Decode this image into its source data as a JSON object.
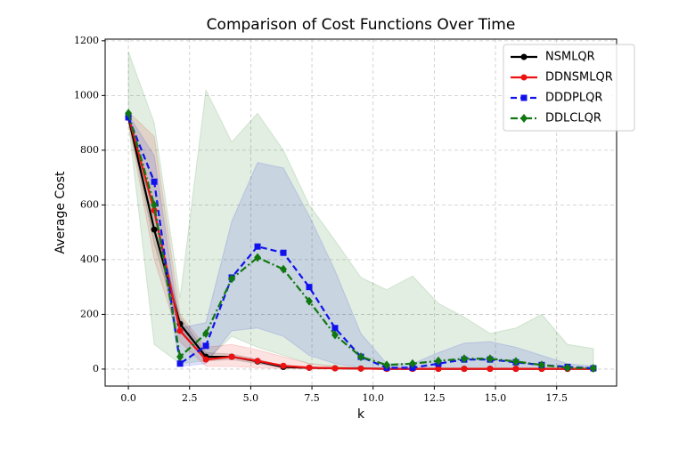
{
  "chart_data": {
    "type": "line",
    "title": "Comparison of Cost Functions Over Time",
    "x_label": "k",
    "y_label": "Average Cost",
    "x": [
      0,
      1.056,
      2.111,
      3.167,
      4.222,
      5.278,
      6.333,
      7.389,
      8.444,
      9.5,
      10.556,
      11.611,
      12.667,
      13.722,
      14.778,
      15.833,
      16.889,
      17.944,
      19
    ],
    "series": [
      {
        "name": "NSMLQR",
        "color": "#000000",
        "marker": "circle",
        "linestyle": "solid",
        "values": [
          920,
          510,
          165,
          45,
          45,
          28,
          8,
          5,
          3,
          2,
          1,
          1,
          1,
          1,
          1,
          1,
          1,
          1,
          1
        ],
        "upper": [
          930,
          560,
          190,
          60,
          55,
          35,
          12,
          8,
          5,
          3,
          2,
          2,
          2,
          2,
          2,
          2,
          2,
          2,
          2
        ],
        "lower": [
          910,
          460,
          140,
          30,
          35,
          20,
          4,
          2,
          1,
          0,
          0,
          0,
          0,
          0,
          0,
          0,
          0,
          0,
          0
        ]
      },
      {
        "name": "DDNSMLQR",
        "color": "#ee1111",
        "marker": "circle",
        "linestyle": "solid",
        "values": [
          925,
          580,
          140,
          35,
          45,
          30,
          12,
          5,
          3,
          2,
          1,
          1,
          1,
          1,
          1,
          1,
          1,
          1,
          1
        ],
        "upper": [
          940,
          850,
          200,
          80,
          90,
          70,
          45,
          20,
          10,
          5,
          3,
          3,
          3,
          3,
          3,
          3,
          3,
          3,
          3
        ],
        "lower": [
          900,
          400,
          100,
          10,
          10,
          5,
          2,
          1,
          0,
          0,
          0,
          0,
          0,
          0,
          0,
          0,
          0,
          0,
          0
        ]
      },
      {
        "name": "DDDPLQR",
        "color": "#1111ee",
        "marker": "square",
        "linestyle": "dashed",
        "values": [
          920,
          685,
          20,
          85,
          335,
          448,
          425,
          300,
          150,
          45,
          5,
          5,
          20,
          35,
          35,
          25,
          15,
          8,
          3
        ],
        "upper": [
          930,
          780,
          150,
          170,
          540,
          755,
          735,
          560,
          360,
          130,
          20,
          20,
          60,
          95,
          100,
          80,
          50,
          20,
          10
        ],
        "lower": [
          910,
          580,
          10,
          20,
          140,
          150,
          120,
          50,
          20,
          5,
          0,
          0,
          0,
          0,
          0,
          0,
          0,
          0,
          0
        ]
      },
      {
        "name": "DDLCLQR",
        "color": "#117711",
        "marker": "diamond",
        "linestyle": "dashdot",
        "values": [
          935,
          600,
          45,
          130,
          330,
          408,
          365,
          248,
          125,
          45,
          15,
          20,
          30,
          38,
          38,
          28,
          15,
          5,
          3
        ],
        "upper": [
          1160,
          900,
          260,
          1020,
          830,
          935,
          800,
          600,
          470,
          335,
          290,
          340,
          240,
          190,
          130,
          150,
          200,
          90,
          75
        ],
        "lower": [
          900,
          90,
          20,
          30,
          120,
          80,
          50,
          20,
          10,
          0,
          0,
          0,
          0,
          0,
          0,
          0,
          0,
          0,
          0
        ]
      }
    ],
    "xlim": [
      -0.95,
      19.95
    ],
    "ylim": [
      -62,
      1206
    ],
    "xticks": [
      {
        "value": 0,
        "label": "0.0"
      },
      2.5,
      {
        "value": 5,
        "label": "5.0"
      },
      7.5,
      {
        "value": 10,
        "label": "10.0"
      },
      12.5,
      {
        "value": 15,
        "label": "15.0"
      },
      17.5
    ],
    "yticks": [
      0,
      200,
      400,
      600,
      800,
      1000,
      1200
    ],
    "grid": true,
    "legend": "upper right"
  }
}
